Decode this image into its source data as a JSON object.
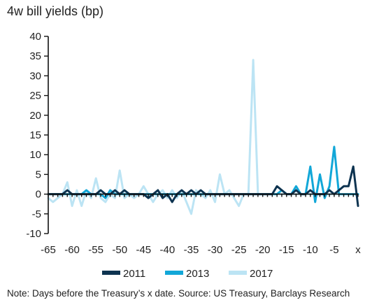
{
  "title": "4w bill yields (bp)",
  "note": "Note: Days before the Treasury’s x date. Source: US Treasury, Barclays Research",
  "chart_data": {
    "type": "line",
    "title": "4w bill yields (bp)",
    "xlabel": "",
    "ylabel": "",
    "x_tick_labels": [
      "-65",
      "-60",
      "-55",
      "-50",
      "-45",
      "-40",
      "-35",
      "-30",
      "-25",
      "-20",
      "-15",
      "-10",
      "-5",
      "x"
    ],
    "x_tick_values": [
      -65,
      -60,
      -55,
      -50,
      -45,
      -40,
      -35,
      -30,
      -25,
      -20,
      -15,
      -10,
      -5,
      0
    ],
    "xlim": [
      -65,
      0
    ],
    "ylim": [
      -10,
      40
    ],
    "y_ticks": [
      -10,
      -5,
      0,
      5,
      10,
      15,
      20,
      25,
      30,
      35,
      40
    ],
    "grid": false,
    "legend_position": "bottom",
    "series": [
      {
        "name": "2011",
        "color": "#0d3350",
        "points": [
          [
            -65,
            0
          ],
          [
            -64,
            0
          ],
          [
            -63,
            0
          ],
          [
            -62,
            0
          ],
          [
            -61,
            1
          ],
          [
            -60,
            0
          ],
          [
            -59,
            0
          ],
          [
            -58,
            0
          ],
          [
            -57,
            0
          ],
          [
            -56,
            0
          ],
          [
            -55,
            0
          ],
          [
            -54,
            1
          ],
          [
            -53,
            0
          ],
          [
            -52,
            0
          ],
          [
            -51,
            1
          ],
          [
            -50,
            0
          ],
          [
            -49,
            1
          ],
          [
            -48,
            0
          ],
          [
            -47,
            0
          ],
          [
            -46,
            0
          ],
          [
            -45,
            0
          ],
          [
            -44,
            -1
          ],
          [
            -43,
            0
          ],
          [
            -42,
            1
          ],
          [
            -41,
            -1
          ],
          [
            -40,
            0
          ],
          [
            -39,
            -2
          ],
          [
            -38,
            0
          ],
          [
            -37,
            1
          ],
          [
            -36,
            0
          ],
          [
            -35,
            1
          ],
          [
            -34,
            0
          ],
          [
            -33,
            1
          ],
          [
            -32,
            0
          ],
          [
            -31,
            0
          ],
          [
            -30,
            0
          ],
          [
            -29,
            0
          ],
          [
            -28,
            0
          ],
          [
            -27,
            0
          ],
          [
            -26,
            0
          ],
          [
            -25,
            0
          ],
          [
            -24,
            0
          ],
          [
            -23,
            0
          ],
          [
            -22,
            0
          ],
          [
            -21,
            0
          ],
          [
            -20,
            0
          ],
          [
            -19,
            0
          ],
          [
            -18,
            0
          ],
          [
            -17,
            2
          ],
          [
            -16,
            1
          ],
          [
            -15,
            0
          ],
          [
            -14,
            0
          ],
          [
            -13,
            1
          ],
          [
            -12,
            0
          ],
          [
            -11,
            0
          ],
          [
            -10,
            1
          ],
          [
            -9,
            0
          ],
          [
            -8,
            0
          ],
          [
            -7,
            0
          ],
          [
            -6,
            1
          ],
          [
            -5,
            0
          ],
          [
            -4,
            1
          ],
          [
            -3,
            2
          ],
          [
            -2,
            2
          ],
          [
            -1,
            7
          ],
          [
            0,
            -3
          ]
        ]
      },
      {
        "name": "2013",
        "color": "#12a7d8",
        "points": [
          [
            -65,
            0
          ],
          [
            -64,
            0
          ],
          [
            -63,
            0
          ],
          [
            -62,
            0
          ],
          [
            -61,
            0
          ],
          [
            -60,
            0
          ],
          [
            -59,
            0
          ],
          [
            -58,
            0
          ],
          [
            -57,
            1
          ],
          [
            -56,
            0
          ],
          [
            -55,
            0
          ],
          [
            -54,
            0
          ],
          [
            -53,
            -1
          ],
          [
            -52,
            1
          ],
          [
            -51,
            0
          ],
          [
            -50,
            0
          ],
          [
            -49,
            0
          ],
          [
            -48,
            0
          ],
          [
            -47,
            0
          ],
          [
            -46,
            0
          ],
          [
            -45,
            0
          ],
          [
            -44,
            0
          ],
          [
            -43,
            0
          ],
          [
            -42,
            0
          ],
          [
            -41,
            0
          ],
          [
            -40,
            0
          ],
          [
            -39,
            0
          ],
          [
            -38,
            0
          ],
          [
            -37,
            0
          ],
          [
            -36,
            0
          ],
          [
            -35,
            0
          ],
          [
            -34,
            0
          ],
          [
            -33,
            0
          ],
          [
            -32,
            0
          ],
          [
            -31,
            0
          ],
          [
            -30,
            0
          ],
          [
            -29,
            0
          ],
          [
            -28,
            0
          ],
          [
            -27,
            0
          ],
          [
            -26,
            0
          ],
          [
            -25,
            0
          ],
          [
            -24,
            0
          ],
          [
            -23,
            0
          ],
          [
            -22,
            0
          ],
          [
            -21,
            0
          ],
          [
            -20,
            0
          ],
          [
            -19,
            0
          ],
          [
            -18,
            0
          ],
          [
            -17,
            0
          ],
          [
            -16,
            1
          ],
          [
            -15,
            0
          ],
          [
            -14,
            0
          ],
          [
            -13,
            2
          ],
          [
            -12,
            0
          ],
          [
            -11,
            0
          ],
          [
            -10,
            7
          ],
          [
            -9,
            -2
          ],
          [
            -8,
            5
          ],
          [
            -7,
            -1
          ],
          [
            -6,
            2
          ],
          [
            -5,
            12
          ],
          [
            -4,
            0
          ],
          [
            -3,
            0
          ],
          [
            -2,
            0
          ],
          [
            -1,
            0
          ],
          [
            0,
            0
          ]
        ]
      },
      {
        "name": "2017",
        "color": "#bce4f4",
        "points": [
          [
            -65,
            -1
          ],
          [
            -64,
            -2
          ],
          [
            -63,
            -1
          ],
          [
            -62,
            0
          ],
          [
            -61,
            3
          ],
          [
            -60,
            -3
          ],
          [
            -59,
            1
          ],
          [
            -58,
            -3
          ],
          [
            -57,
            1
          ],
          [
            -56,
            -1
          ],
          [
            -55,
            4
          ],
          [
            -54,
            -1
          ],
          [
            -53,
            -2
          ],
          [
            -52,
            0
          ],
          [
            -51,
            -1
          ],
          [
            -50,
            6
          ],
          [
            -49,
            -1
          ],
          [
            -48,
            0
          ],
          [
            -47,
            -1
          ],
          [
            -46,
            0
          ],
          [
            -45,
            2
          ],
          [
            -44,
            0
          ],
          [
            -43,
            -2
          ],
          [
            -42,
            0
          ],
          [
            -41,
            1
          ],
          [
            -40,
            -1
          ],
          [
            -39,
            1
          ],
          [
            -38,
            -1
          ],
          [
            -37,
            1
          ],
          [
            -36,
            -2
          ],
          [
            -35,
            -5
          ],
          [
            -34,
            1
          ],
          [
            -33,
            0
          ],
          [
            -32,
            -1
          ],
          [
            -31,
            1
          ],
          [
            -30,
            -2
          ],
          [
            -29,
            5
          ],
          [
            -28,
            0
          ],
          [
            -27,
            1
          ],
          [
            -26,
            -1
          ],
          [
            -25,
            -3
          ],
          [
            -24,
            0
          ],
          [
            -23,
            0
          ],
          [
            -22,
            34
          ],
          [
            -21,
            0
          ],
          [
            -20,
            0
          ],
          [
            -19,
            0
          ],
          [
            -18,
            0
          ],
          [
            -17,
            0
          ],
          [
            -16,
            0
          ],
          [
            -15,
            0
          ],
          [
            -14,
            0
          ],
          [
            -13,
            0
          ],
          [
            -12,
            0
          ],
          [
            -11,
            0
          ],
          [
            -10,
            0
          ],
          [
            -9,
            0
          ],
          [
            -8,
            0
          ],
          [
            -7,
            0
          ],
          [
            -6,
            0
          ],
          [
            -5,
            0
          ],
          [
            -4,
            0
          ],
          [
            -3,
            0
          ],
          [
            -2,
            0
          ],
          [
            -1,
            0
          ],
          [
            0,
            0
          ]
        ]
      }
    ]
  }
}
